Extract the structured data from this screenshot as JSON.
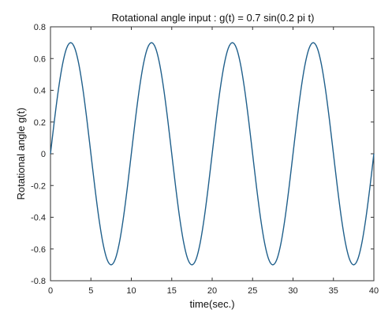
{
  "chart_data": {
    "type": "line",
    "title": "Rotational angle input  :   g(t) = 0.7 sin(0.2 pi t)",
    "xlabel": "time(sec.)",
    "ylabel": "Rotational angle g(t)",
    "xlim": [
      0,
      40
    ],
    "ylim": [
      -0.8,
      0.8
    ],
    "x_ticks": [
      0,
      5,
      10,
      15,
      20,
      25,
      30,
      35,
      40
    ],
    "x_tick_labels": [
      "0",
      "5",
      "10",
      "15",
      "20",
      "25",
      "30",
      "35",
      "40"
    ],
    "y_ticks": [
      0.8,
      0.6,
      0.4,
      0.2,
      0,
      -0.2,
      -0.4,
      -0.6,
      -0.8
    ],
    "y_tick_labels": [
      "0.8",
      "0.6",
      "0.4",
      "0.2",
      "0",
      "-0.2",
      "-0.4",
      "-0.6",
      "-0.8"
    ],
    "grid": false,
    "series": [
      {
        "color": "#1f5f8b",
        "x": [
          0,
          0.5,
          1,
          1.5,
          2,
          2.5,
          3,
          3.5,
          4,
          4.5,
          5,
          5.5,
          6,
          6.5,
          7,
          7.5,
          8,
          8.5,
          9,
          9.5,
          10,
          10.5,
          11,
          11.5,
          12,
          12.5,
          13,
          13.5,
          14,
          14.5,
          15,
          15.5,
          16,
          16.5,
          17,
          17.5,
          18,
          18.5,
          19,
          19.5,
          20,
          20.5,
          21,
          21.5,
          22,
          22.5,
          23,
          23.5,
          24,
          24.5,
          25,
          25.5,
          26,
          26.5,
          27,
          27.5,
          28,
          28.5,
          29,
          29.5,
          30,
          30.5,
          31,
          31.5,
          32,
          32.5,
          33,
          33.5,
          34,
          34.5,
          35,
          35.5,
          36,
          36.5,
          37,
          37.5,
          38,
          38.5,
          39,
          39.5,
          40
        ],
        "y": [
          0,
          0.216,
          0.411,
          0.566,
          0.666,
          0.7,
          0.666,
          0.566,
          0.411,
          0.216,
          0,
          -0.216,
          -0.411,
          -0.566,
          -0.666,
          -0.7,
          -0.666,
          -0.566,
          -0.411,
          -0.216,
          0,
          0.216,
          0.411,
          0.566,
          0.666,
          0.7,
          0.666,
          0.566,
          0.411,
          0.216,
          0,
          -0.216,
          -0.411,
          -0.566,
          -0.666,
          -0.7,
          -0.666,
          -0.566,
          -0.411,
          -0.216,
          0,
          0.216,
          0.411,
          0.566,
          0.666,
          0.7,
          0.666,
          0.566,
          0.411,
          0.216,
          0,
          -0.216,
          -0.411,
          -0.566,
          -0.666,
          -0.7,
          -0.666,
          -0.566,
          -0.411,
          -0.216,
          0,
          0.216,
          0.411,
          0.566,
          0.666,
          0.7,
          0.666,
          0.566,
          0.411,
          0.216,
          0,
          -0.216,
          -0.411,
          -0.566,
          -0.666,
          -0.7,
          -0.666,
          -0.566,
          -0.411,
          -0.216,
          0
        ]
      }
    ]
  }
}
